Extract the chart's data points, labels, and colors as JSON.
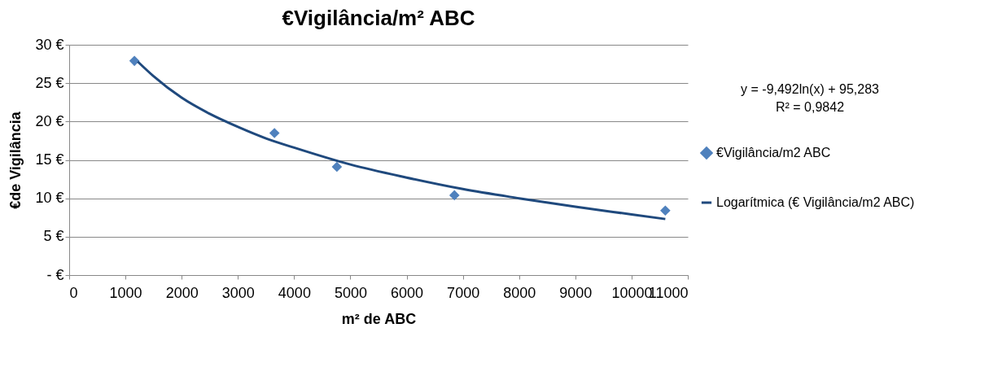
{
  "chart_data": {
    "type": "scatter",
    "title": "€Vigilância/m² ABC",
    "xlabel": "m² de ABC",
    "ylabel": "€de Vigilância",
    "xlim": [
      0,
      11000
    ],
    "xticks": [
      0,
      1000,
      2000,
      3000,
      4000,
      5000,
      6000,
      7000,
      8000,
      9000,
      10000,
      11000
    ],
    "ylim": [
      0,
      30
    ],
    "yticks": [
      {
        "value": 0,
        "label": "- €"
      },
      {
        "value": 5,
        "label": "5 €"
      },
      {
        "value": 10,
        "label": "10 €"
      },
      {
        "value": 15,
        "label": "15 €"
      },
      {
        "value": 20,
        "label": "20 €"
      },
      {
        "value": 25,
        "label": "25 €"
      },
      {
        "value": 30,
        "label": "30 €"
      }
    ],
    "grid": "y",
    "legend": "right",
    "annotations": [
      "y = -9,492ln(x) + 95,283",
      "R² = 0,9842"
    ],
    "series": [
      {
        "name": "€Vigilância/m2 ABC",
        "marker": "diamond",
        "color": "#4f81bd",
        "x": [
          1160,
          3650,
          4760,
          6850,
          10600
        ],
        "values": [
          27.9,
          18.5,
          14.1,
          10.4,
          8.4
        ]
      },
      {
        "name": "Logarítmica (€ Vigilância/m2 ABC)",
        "type": "line",
        "color": "#1f497d",
        "line_style": "solid",
        "x": [
          1220,
          1500,
          2000,
          2500,
          3000,
          3500,
          4000,
          5000,
          6000,
          7000,
          8000,
          9000,
          10000,
          10600
        ],
        "values": [
          27.8,
          25.9,
          23.1,
          21.0,
          19.3,
          17.8,
          16.6,
          14.4,
          12.7,
          11.2,
          10.0,
          8.9,
          7.9,
          7.3
        ]
      }
    ]
  }
}
